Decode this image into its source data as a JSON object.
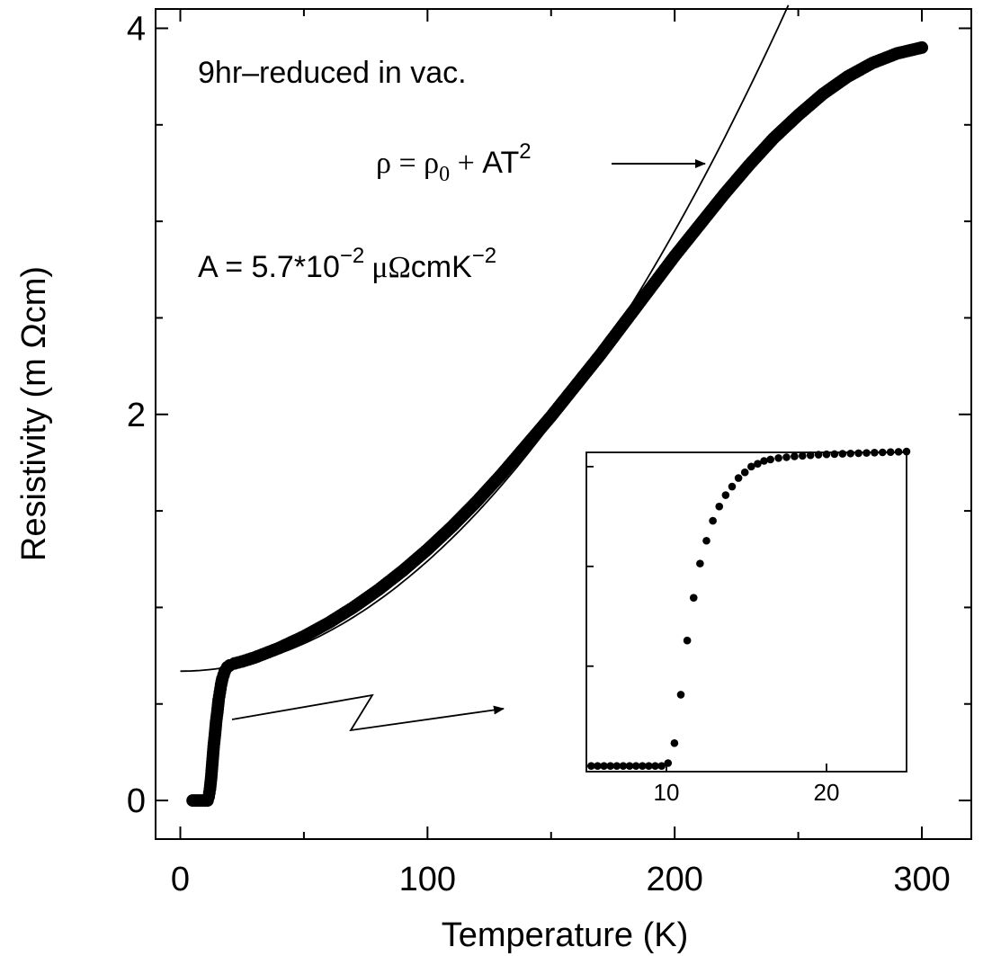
{
  "chart_data": [
    {
      "type": "scatter",
      "xlabel": "Temperature (K)",
      "ylabel": "Resistivity (m Ωcm)",
      "xlim": [
        -10,
        320
      ],
      "ylim": [
        -0.2,
        4.1
      ],
      "xticks": [
        0,
        100,
        200,
        300
      ],
      "xtick_labels": [
        "0",
        "100",
        "200",
        "300"
      ],
      "xminor": [
        50,
        150,
        250
      ],
      "yticks": [
        0,
        2,
        4
      ],
      "ytick_labels": [
        "0",
        "2",
        "4"
      ],
      "yminor": [
        0.5,
        1,
        1.5,
        2.5,
        3,
        3.5
      ],
      "annotations": {
        "sample": "9hr–reduced in vac.",
        "fit_rho": "ρ = ρ",
        "fit_sub": "0",
        "fit_plus": " + ",
        "fit_AT": "AT",
        "fit_exp": "2",
        "coef_main": "A = 5.7*10",
        "coef_exp": "−2",
        "coef_unit": "μΩ",
        "coef_unit2": "cmK",
        "coef_unit_exp": "−2"
      },
      "series": [
        {
          "kind": "markers",
          "points": [
            [
              5,
              0
            ],
            [
              6,
              0
            ],
            [
              7,
              0
            ],
            [
              8,
              0
            ],
            [
              9,
              0
            ],
            [
              10,
              0
            ],
            [
              11,
              0
            ],
            [
              11.5,
              0.02
            ],
            [
              12,
              0.06
            ],
            [
              12.5,
              0.12
            ],
            [
              13,
              0.2
            ],
            [
              13.5,
              0.28
            ],
            [
              14,
              0.34
            ],
            [
              14.5,
              0.41
            ],
            [
              15,
              0.46
            ],
            [
              15.5,
              0.52
            ],
            [
              16,
              0.56
            ],
            [
              16.5,
              0.6
            ],
            [
              17,
              0.63
            ],
            [
              17.5,
              0.65
            ],
            [
              18,
              0.67
            ],
            [
              19,
              0.69
            ],
            [
              20,
              0.7
            ],
            [
              22,
              0.71
            ],
            [
              25,
              0.72
            ],
            [
              30,
              0.74
            ],
            [
              40,
              0.79
            ],
            [
              50,
              0.85
            ],
            [
              60,
              0.92
            ],
            [
              70,
              1.0
            ],
            [
              80,
              1.09
            ],
            [
              90,
              1.19
            ],
            [
              100,
              1.3
            ],
            [
              110,
              1.42
            ],
            [
              120,
              1.55
            ],
            [
              130,
              1.69
            ],
            [
              140,
              1.84
            ],
            [
              150,
              1.99
            ],
            [
              160,
              2.15
            ],
            [
              170,
              2.31
            ],
            [
              180,
              2.48
            ],
            [
              190,
              2.65
            ],
            [
              200,
              2.82
            ],
            [
              210,
              2.98
            ],
            [
              220,
              3.14
            ],
            [
              230,
              3.29
            ],
            [
              240,
              3.43
            ],
            [
              250,
              3.55
            ],
            [
              260,
              3.66
            ],
            [
              270,
              3.75
            ],
            [
              280,
              3.82
            ],
            [
              290,
              3.87
            ],
            [
              300,
              3.9
            ]
          ]
        },
        {
          "kind": "line",
          "name": "ρ = ρ₀ + AT²",
          "rho0": 0.67,
          "A_mohmcm_per_K2": 5.7e-05,
          "x_range": [
            0,
            246
          ]
        }
      ]
    },
    {
      "type": "scatter",
      "role": "inset",
      "xlim": [
        5,
        25
      ],
      "ylim": [
        -0.02,
        1.1
      ],
      "xticks": [
        10,
        20
      ],
      "xtick_labels": [
        "10",
        "20"
      ],
      "yticks": [
        0,
        0.35,
        0.7,
        1.05
      ],
      "points": [
        [
          5.3,
          0
        ],
        [
          5.7,
          0
        ],
        [
          6.1,
          0
        ],
        [
          6.5,
          0
        ],
        [
          6.9,
          0
        ],
        [
          7.3,
          0
        ],
        [
          7.7,
          0
        ],
        [
          8.1,
          0
        ],
        [
          8.5,
          0
        ],
        [
          8.9,
          0
        ],
        [
          9.3,
          0
        ],
        [
          9.7,
          0
        ],
        [
          10.1,
          0.01
        ],
        [
          10.5,
          0.08
        ],
        [
          10.9,
          0.25
        ],
        [
          11.3,
          0.44
        ],
        [
          11.7,
          0.59
        ],
        [
          12.1,
          0.71
        ],
        [
          12.5,
          0.79
        ],
        [
          12.9,
          0.86
        ],
        [
          13.3,
          0.91
        ],
        [
          13.7,
          0.95
        ],
        [
          14.1,
          0.98
        ],
        [
          14.5,
          1.01
        ],
        [
          14.9,
          1.03
        ],
        [
          15.3,
          1.05
        ],
        [
          15.7,
          1.06
        ],
        [
          16.1,
          1.07
        ],
        [
          16.5,
          1.075
        ],
        [
          17.0,
          1.08
        ],
        [
          17.5,
          1.083
        ],
        [
          18.0,
          1.086
        ],
        [
          18.5,
          1.088
        ],
        [
          19.0,
          1.09
        ],
        [
          19.5,
          1.092
        ],
        [
          20.0,
          1.093
        ],
        [
          20.5,
          1.094
        ],
        [
          21.0,
          1.095
        ],
        [
          21.5,
          1.096
        ],
        [
          22.0,
          1.097
        ],
        [
          22.5,
          1.098
        ],
        [
          23.0,
          1.099
        ],
        [
          23.5,
          1.1
        ],
        [
          24.0,
          1.101
        ],
        [
          24.5,
          1.102
        ],
        [
          25.0,
          1.103
        ]
      ]
    }
  ]
}
